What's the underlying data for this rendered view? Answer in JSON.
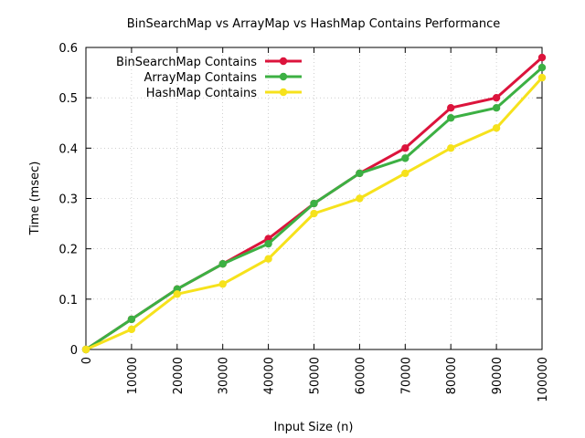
{
  "chart_data": {
    "type": "line",
    "title": "BinSearchMap vs ArrayMap vs HashMap Contains Performance",
    "xlabel": "Input Size (n)",
    "ylabel": "Time (msec)",
    "x": [
      0,
      10000,
      20000,
      30000,
      40000,
      50000,
      60000,
      70000,
      80000,
      90000,
      100000
    ],
    "x_tick_labels": [
      "0",
      "10000",
      "20000",
      "30000",
      "40000",
      "50000",
      "60000",
      "70000",
      "80000",
      "90000",
      "100000"
    ],
    "y_tick_labels": [
      "0",
      "0.1",
      "0.2",
      "0.3",
      "0.4",
      "0.5",
      "0.6"
    ],
    "xlim": [
      0,
      100000
    ],
    "ylim": [
      0,
      0.6
    ],
    "grid": true,
    "legend_position": "top-left",
    "series": [
      {
        "name": "BinSearchMap Contains",
        "color": "#dc143c",
        "values": [
          0,
          0.06,
          0.12,
          0.17,
          0.22,
          0.29,
          0.35,
          0.4,
          0.48,
          0.5,
          0.58
        ]
      },
      {
        "name": "ArrayMap Contains",
        "color": "#3cb043",
        "values": [
          0,
          0.06,
          0.12,
          0.17,
          0.21,
          0.29,
          0.35,
          0.38,
          0.46,
          0.48,
          0.56
        ]
      },
      {
        "name": "HashMap Contains",
        "color": "#f6e21c",
        "values": [
          0,
          0.04,
          0.11,
          0.13,
          0.18,
          0.27,
          0.3,
          0.35,
          0.4,
          0.44,
          0.54
        ]
      }
    ]
  }
}
